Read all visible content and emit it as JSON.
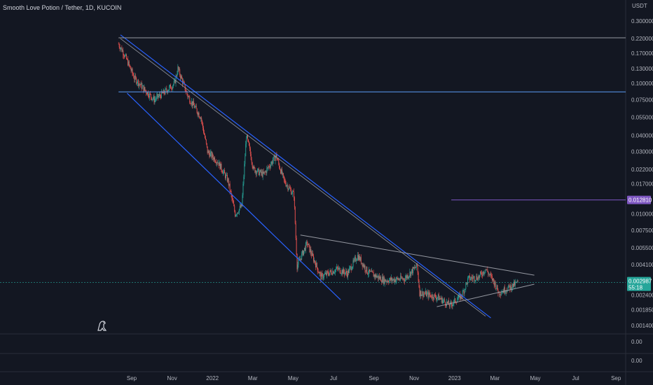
{
  "header": {
    "symbol_title": "Smooth Love Potion / Tether, 1D, KUCOIN",
    "currency": "USDT"
  },
  "chart_data": {
    "type": "candlestick",
    "title": "Smooth Love Potion / Tether, 1D, KUCOIN",
    "y_scale": "log",
    "y_unit": "USDT",
    "ylim": [
      0.0012,
      0.32
    ],
    "y_ticks": [
      "0.300000",
      "0.220000",
      "0.170000",
      "0.130000",
      "0.100000",
      "0.075000",
      "0.055000",
      "0.040000",
      "0.030000",
      "0.022000",
      "0.017000",
      "0.010000",
      "0.007500",
      "0.005500",
      "0.004100",
      "0.002400",
      "0.001850",
      "0.001400"
    ],
    "x_tick_labels": [
      "Sep",
      "Nov",
      "2022",
      "Mar",
      "May",
      "Jul",
      "Sep",
      "Nov",
      "2023",
      "Mar",
      "May",
      "Jul",
      "Sep"
    ],
    "last_price_label": "0.002987",
    "countdown_label": "55:18",
    "marked_level_label": "0.012810",
    "colors": {
      "up": "#26a69a",
      "down": "#ef5350",
      "channel": "#2962ff",
      "trendline": "#9598a1",
      "level_h": "#5b9cf6",
      "level_marked": "#7e57c2"
    },
    "price_path": [
      [
        "2021-08-12",
        0.2
      ],
      [
        "2021-08-20",
        0.17
      ],
      [
        "2021-09-05",
        0.11
      ],
      [
        "2021-09-20",
        0.09
      ],
      [
        "2021-10-05",
        0.075
      ],
      [
        "2021-10-20",
        0.085
      ],
      [
        "2021-11-05",
        0.1
      ],
      [
        "2021-11-10",
        0.13
      ],
      [
        "2021-11-25",
        0.08
      ],
      [
        "2021-12-15",
        0.055
      ],
      [
        "2021-12-25",
        0.03
      ],
      [
        "2022-01-10",
        0.025
      ],
      [
        "2022-01-25",
        0.018
      ],
      [
        "2022-02-05",
        0.01
      ],
      [
        "2022-02-15",
        0.0115
      ],
      [
        "2022-02-22",
        0.04
      ],
      [
        "2022-03-05",
        0.022
      ],
      [
        "2022-03-20",
        0.02
      ],
      [
        "2022-04-08",
        0.028
      ],
      [
        "2022-04-20",
        0.018
      ],
      [
        "2022-05-05",
        0.014
      ],
      [
        "2022-05-10",
        0.004
      ],
      [
        "2022-05-25",
        0.006
      ],
      [
        "2022-06-15",
        0.0033
      ],
      [
        "2022-07-10",
        0.0038
      ],
      [
        "2022-07-25",
        0.0035
      ],
      [
        "2022-08-10",
        0.0048
      ],
      [
        "2022-08-25",
        0.0036
      ],
      [
        "2022-09-20",
        0.0031
      ],
      [
        "2022-10-20",
        0.0032
      ],
      [
        "2022-11-08",
        0.004
      ],
      [
        "2022-11-12",
        0.0025
      ],
      [
        "2022-12-10",
        0.0023
      ],
      [
        "2022-12-28",
        0.002
      ],
      [
        "2023-01-15",
        0.0024
      ],
      [
        "2023-01-25",
        0.0032
      ],
      [
        "2023-02-10",
        0.0033
      ],
      [
        "2023-02-20",
        0.0038
      ],
      [
        "2023-03-05",
        0.003
      ],
      [
        "2023-03-12",
        0.0025
      ],
      [
        "2023-04-01",
        0.0028
      ],
      [
        "2023-04-10",
        0.00299
      ]
    ],
    "drawings": [
      {
        "type": "channel_upper",
        "from": [
          "2021-08-15",
          0.235
        ],
        "to": [
          "2023-02-28",
          0.0016
        ]
      },
      {
        "type": "channel_lower",
        "from": [
          "2021-08-25",
          0.084
        ],
        "to": [
          "2022-07-15",
          0.0022
        ]
      },
      {
        "type": "channel_mid",
        "from": [
          "2021-08-15",
          0.22
        ],
        "to": [
          "2023-02-20",
          0.00165
        ]
      },
      {
        "type": "horizontal",
        "price": 0.223,
        "from": "2021-08-12"
      },
      {
        "type": "horizontal",
        "price": 0.086,
        "from": "2021-08-12"
      },
      {
        "type": "horizontal_marked",
        "price": 0.01281,
        "from": "2022-12-30"
      },
      {
        "type": "triangle_upper",
        "from": [
          "2022-05-15",
          0.0069
        ],
        "to": [
          "2023-05-05",
          0.0034
        ]
      },
      {
        "type": "triangle_lower",
        "from": [
          "2022-12-08",
          0.00195
        ],
        "to": [
          "2023-05-05",
          0.0029
        ]
      }
    ],
    "panes": [
      {
        "value_label": "0.00"
      },
      {
        "value_label": "0.00"
      }
    ]
  }
}
